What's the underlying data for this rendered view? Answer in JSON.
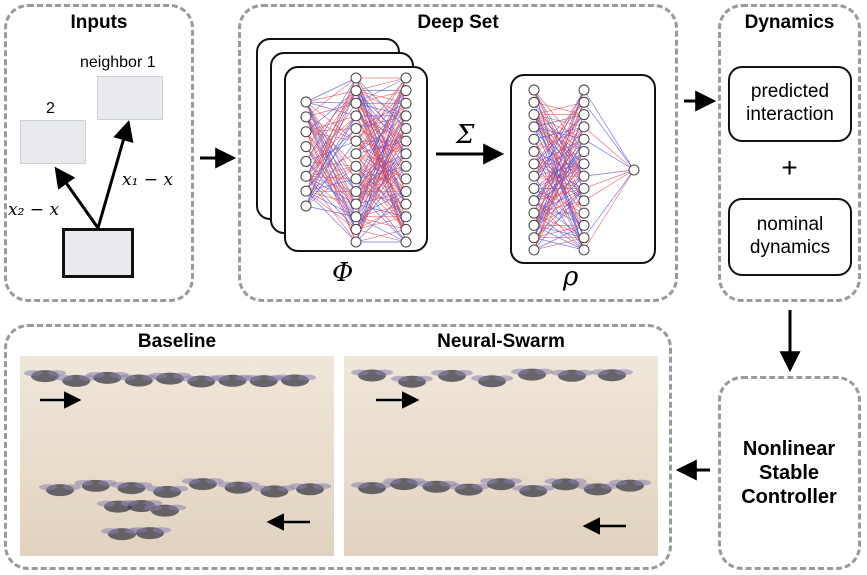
{
  "inputs": {
    "title": "Inputs",
    "neighbor1_label": "neighbor 1",
    "neighbor2_label": "2",
    "vec1": "x₁ − x",
    "vec2": "x₂ − x"
  },
  "deepset": {
    "title": "Deep Set",
    "phi": "Φ",
    "rho": "ρ",
    "sum": "Σ"
  },
  "dynamics": {
    "title": "Dynamics",
    "predicted": "predicted interaction",
    "plus": "+",
    "nominal": "nominal dynamics"
  },
  "controller": {
    "label": "Nonlinear Stable Controller"
  },
  "comparison": {
    "baseline_title": "Baseline",
    "neuralswarm_title": "Neural-Swarm"
  },
  "colors": {
    "panel_border": "#9a9a9a",
    "edge_red": "#e0464f",
    "edge_blue": "#4a4ad8",
    "photo_bg": "#e8dccb"
  }
}
